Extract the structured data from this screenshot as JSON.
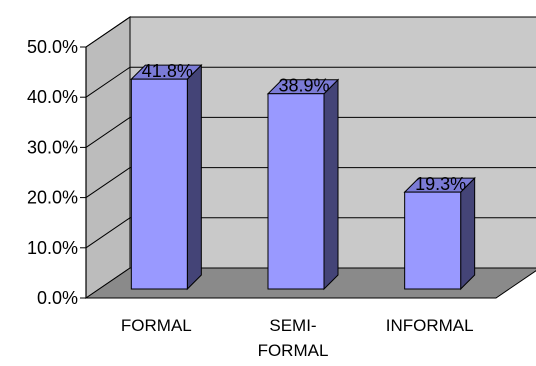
{
  "chart_data": {
    "type": "bar",
    "categories": [
      [
        "FORMAL"
      ],
      [
        "SEMI-",
        "FORMAL"
      ],
      [
        "INFORMAL"
      ]
    ],
    "values": [
      41.8,
      38.9,
      19.3
    ],
    "data_labels": [
      "41.8%",
      "38.9%",
      "19.3%"
    ],
    "ylim": [
      0,
      50
    ],
    "yticks": [
      0,
      10,
      20,
      30,
      40,
      50
    ],
    "ytick_labels": [
      "0.0%",
      "10.0%",
      "20.0%",
      "30.0%",
      "40.0%",
      "50.0%"
    ],
    "grid": true,
    "legend": "none",
    "style": "3d-column",
    "colors": {
      "bar_front": "#9999ff",
      "bar_side": "#444477",
      "bar_top": "#7b7bd6",
      "back_wall": "#c9c9c9",
      "side_wall": "#bcbcbc",
      "floor": "#8a8a8a",
      "gridline": "#000000"
    }
  }
}
